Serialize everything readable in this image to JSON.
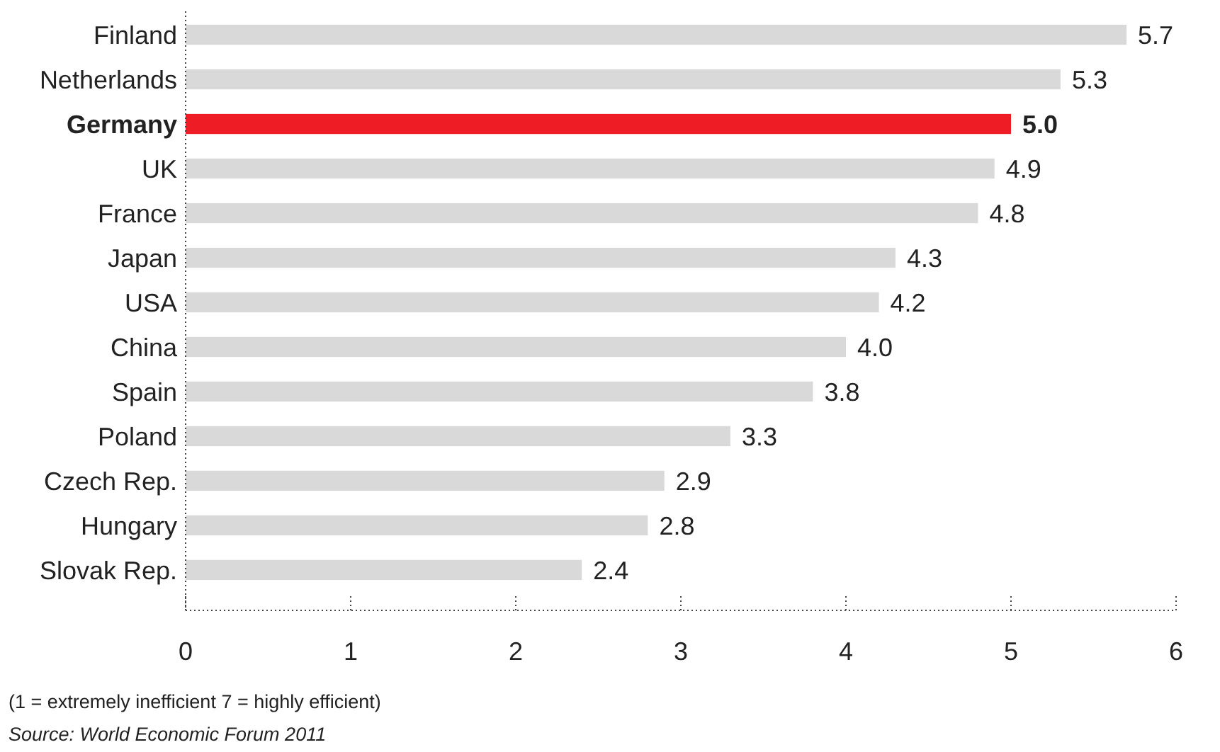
{
  "chart_data": {
    "type": "bar",
    "orientation": "horizontal",
    "categories": [
      "Finland",
      "Netherlands",
      "Germany",
      "UK",
      "France",
      "Japan",
      "USA",
      "China",
      "Spain",
      "Poland",
      "Czech Rep.",
      "Hungary",
      "Slovak Rep."
    ],
    "values": [
      5.7,
      5.3,
      5.0,
      4.9,
      4.8,
      4.3,
      4.2,
      4.0,
      3.8,
      3.3,
      2.9,
      2.8,
      2.4
    ],
    "colors": [
      "#d9d9da",
      "#d9d9da",
      "#ee1c25",
      "#d9d9da",
      "#d9d9da",
      "#d9d9da",
      "#d9d9da",
      "#d9d9da",
      "#d9d9da",
      "#d9d9da",
      "#d9d9da",
      "#d9d9da",
      "#d9d9da"
    ],
    "value_labels": [
      "5.7",
      "5.3",
      "5.0",
      "4.9",
      "4.8",
      "4.3",
      "4.2",
      "4.0",
      "3.8",
      "3.3",
      "2.9",
      "2.8",
      "2.4"
    ],
    "xlim": [
      0,
      6
    ],
    "xticks": [
      0,
      1,
      2,
      3,
      4,
      5,
      6
    ],
    "grid": false,
    "annotations": [
      "(1 = extremely inefficient 7 = highly efficient)",
      "Source: World Economic Forum 2011"
    ]
  }
}
